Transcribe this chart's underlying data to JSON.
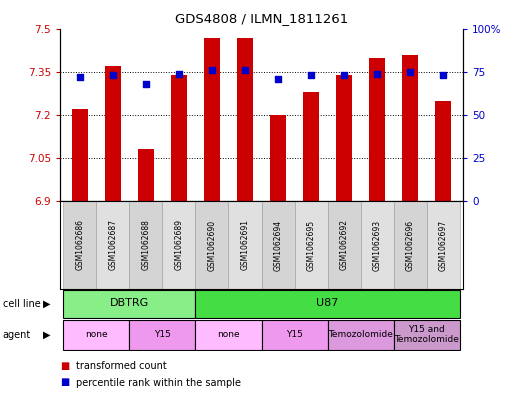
{
  "title": "GDS4808 / ILMN_1811261",
  "samples": [
    "GSM1062686",
    "GSM1062687",
    "GSM1062688",
    "GSM1062689",
    "GSM1062690",
    "GSM1062691",
    "GSM1062694",
    "GSM1062695",
    "GSM1062692",
    "GSM1062693",
    "GSM1062696",
    "GSM1062697"
  ],
  "transformed_counts": [
    7.22,
    7.37,
    7.08,
    7.34,
    7.47,
    7.47,
    7.2,
    7.28,
    7.34,
    7.4,
    7.41,
    7.25
  ],
  "percentile_ranks": [
    72,
    73,
    68,
    74,
    76,
    76,
    71,
    73,
    73,
    74,
    75,
    73
  ],
  "ylim_left": [
    6.9,
    7.5
  ],
  "ylim_right": [
    0,
    100
  ],
  "yticks_left": [
    6.9,
    7.05,
    7.2,
    7.35,
    7.5
  ],
  "yticks_right": [
    0,
    25,
    50,
    75,
    100
  ],
  "ytick_labels_left": [
    "6.9",
    "7.05",
    "7.2",
    "7.35",
    "7.5"
  ],
  "ytick_labels_right": [
    "0",
    "25",
    "50",
    "75",
    "100%"
  ],
  "bar_color": "#cc0000",
  "scatter_color": "#0000cc",
  "bar_width": 0.5,
  "cell_line_groups": [
    {
      "label": "DBTRG",
      "start": 0,
      "end": 4,
      "color": "#88ee88"
    },
    {
      "label": "U87",
      "start": 4,
      "end": 12,
      "color": "#44dd44"
    }
  ],
  "agent_groups": [
    {
      "label": "none",
      "start": 0,
      "end": 2,
      "color": "#ffbbff"
    },
    {
      "label": "Y15",
      "start": 2,
      "end": 4,
      "color": "#ee99ee"
    },
    {
      "label": "none",
      "start": 4,
      "end": 6,
      "color": "#ffbbff"
    },
    {
      "label": "Y15",
      "start": 6,
      "end": 8,
      "color": "#ee99ee"
    },
    {
      "label": "Temozolomide",
      "start": 8,
      "end": 10,
      "color": "#dd99dd"
    },
    {
      "label": "Y15 and\nTemozolomide",
      "start": 10,
      "end": 12,
      "color": "#cc99cc"
    }
  ],
  "legend_items": [
    {
      "label": "transformed count",
      "color": "#cc0000"
    },
    {
      "label": "percentile rank within the sample",
      "color": "#0000cc"
    }
  ],
  "grid_yticks": [
    7.05,
    7.2,
    7.35
  ],
  "background_color": "#ffffff",
  "left_tick_color": "#cc0000",
  "right_tick_color": "#0000cc",
  "sample_col_colors": [
    "#d4d4d4",
    "#e0e0e0"
  ]
}
